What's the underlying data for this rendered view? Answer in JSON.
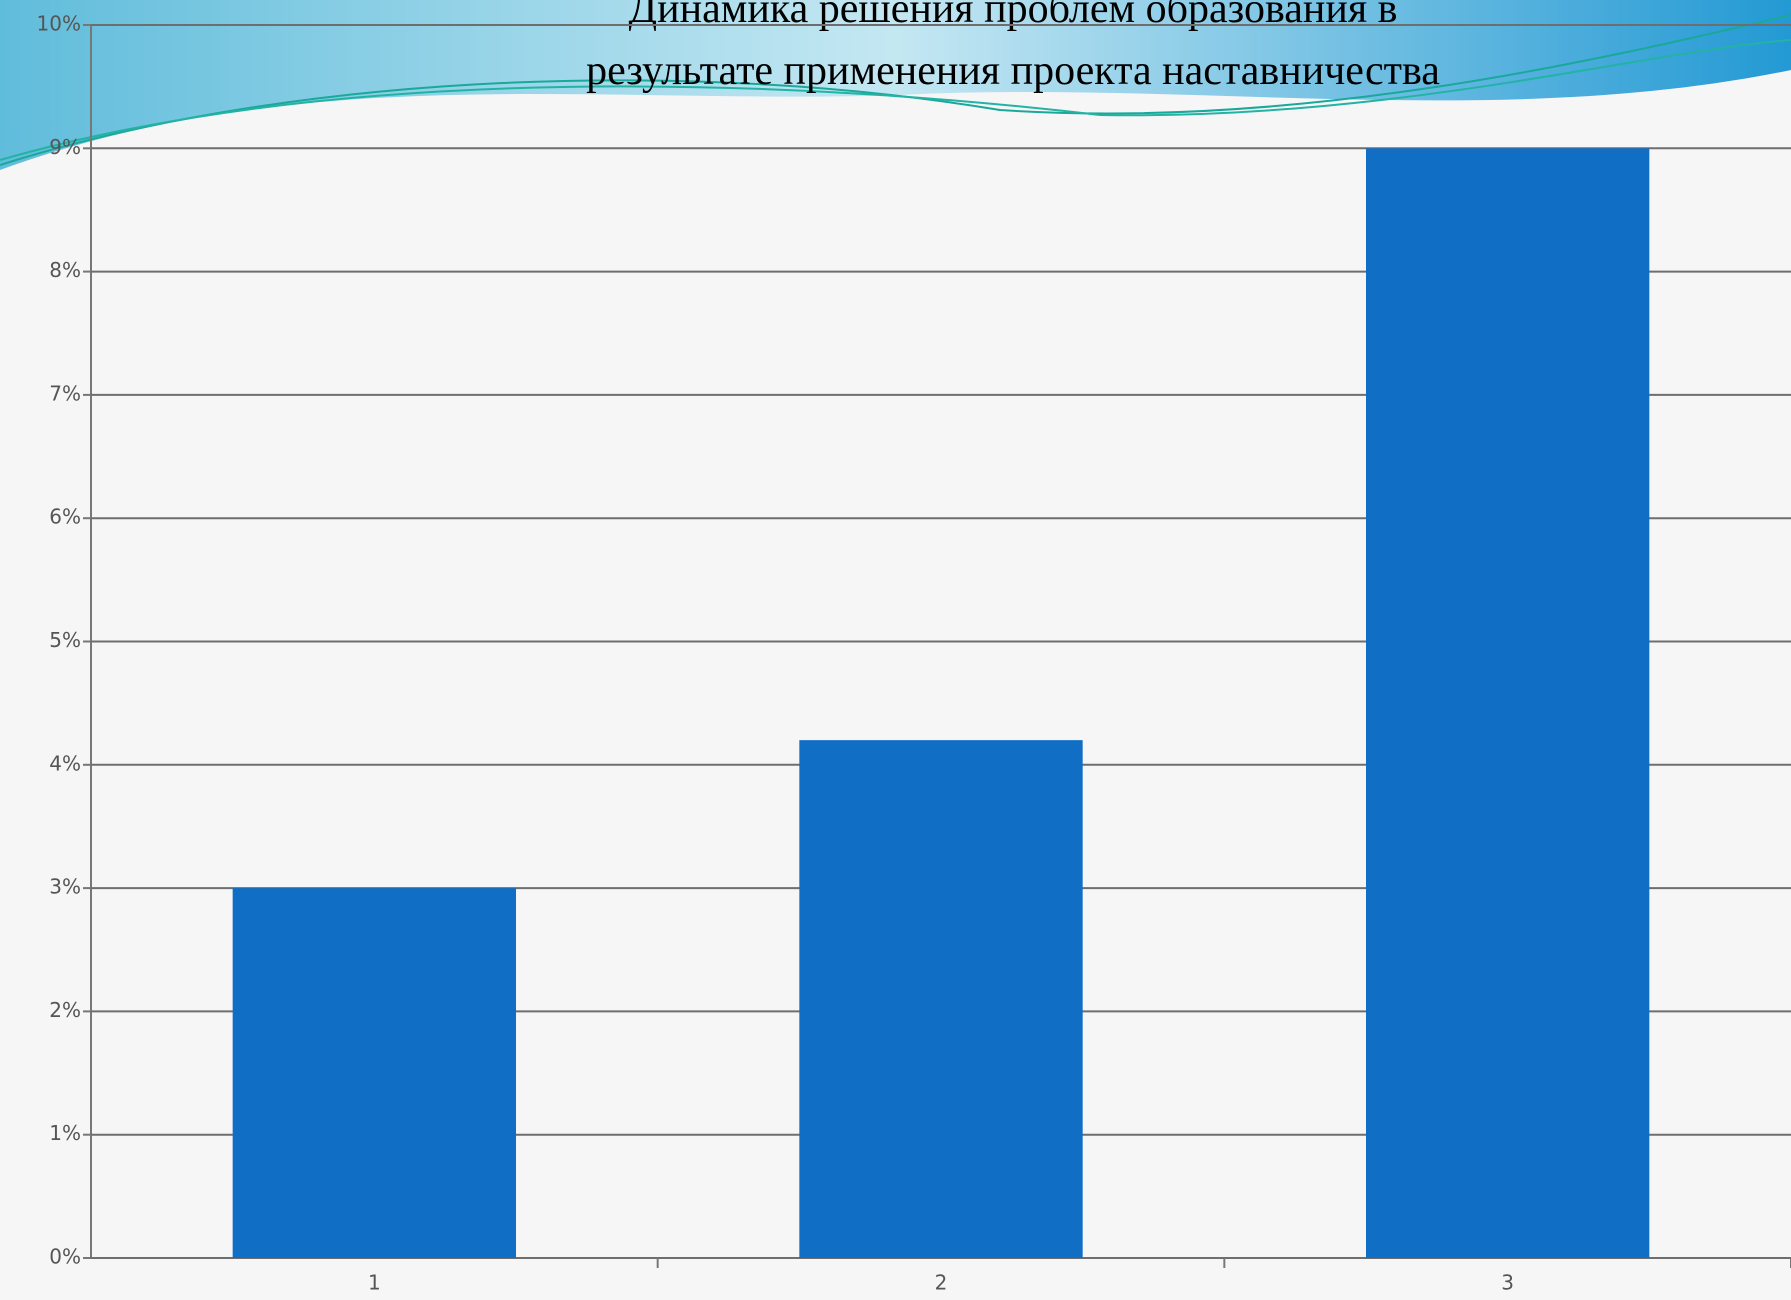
{
  "chart_data": {
    "type": "bar",
    "title": [
      "Динамика решения проблем образования в",
      "результате применения проекта наставничества"
    ],
    "categories": [
      "1",
      "2",
      "3"
    ],
    "values": [
      3,
      4.2,
      9
    ],
    "color": "#106ec5",
    "ylim": [
      0,
      10
    ],
    "yticks": [
      {
        "value": 0,
        "label": "0%"
      },
      {
        "value": 1,
        "label": "1%"
      },
      {
        "value": 2,
        "label": "2%"
      },
      {
        "value": 3,
        "label": "3%"
      },
      {
        "value": 4,
        "label": "4%"
      },
      {
        "value": 5,
        "label": "5%"
      },
      {
        "value": 6,
        "label": "6%"
      },
      {
        "value": 7,
        "label": "7%"
      },
      {
        "value": 8,
        "label": "8%"
      },
      {
        "value": 9,
        "label": "9%"
      },
      {
        "value": 10,
        "label": "10%"
      }
    ],
    "grid": true
  }
}
